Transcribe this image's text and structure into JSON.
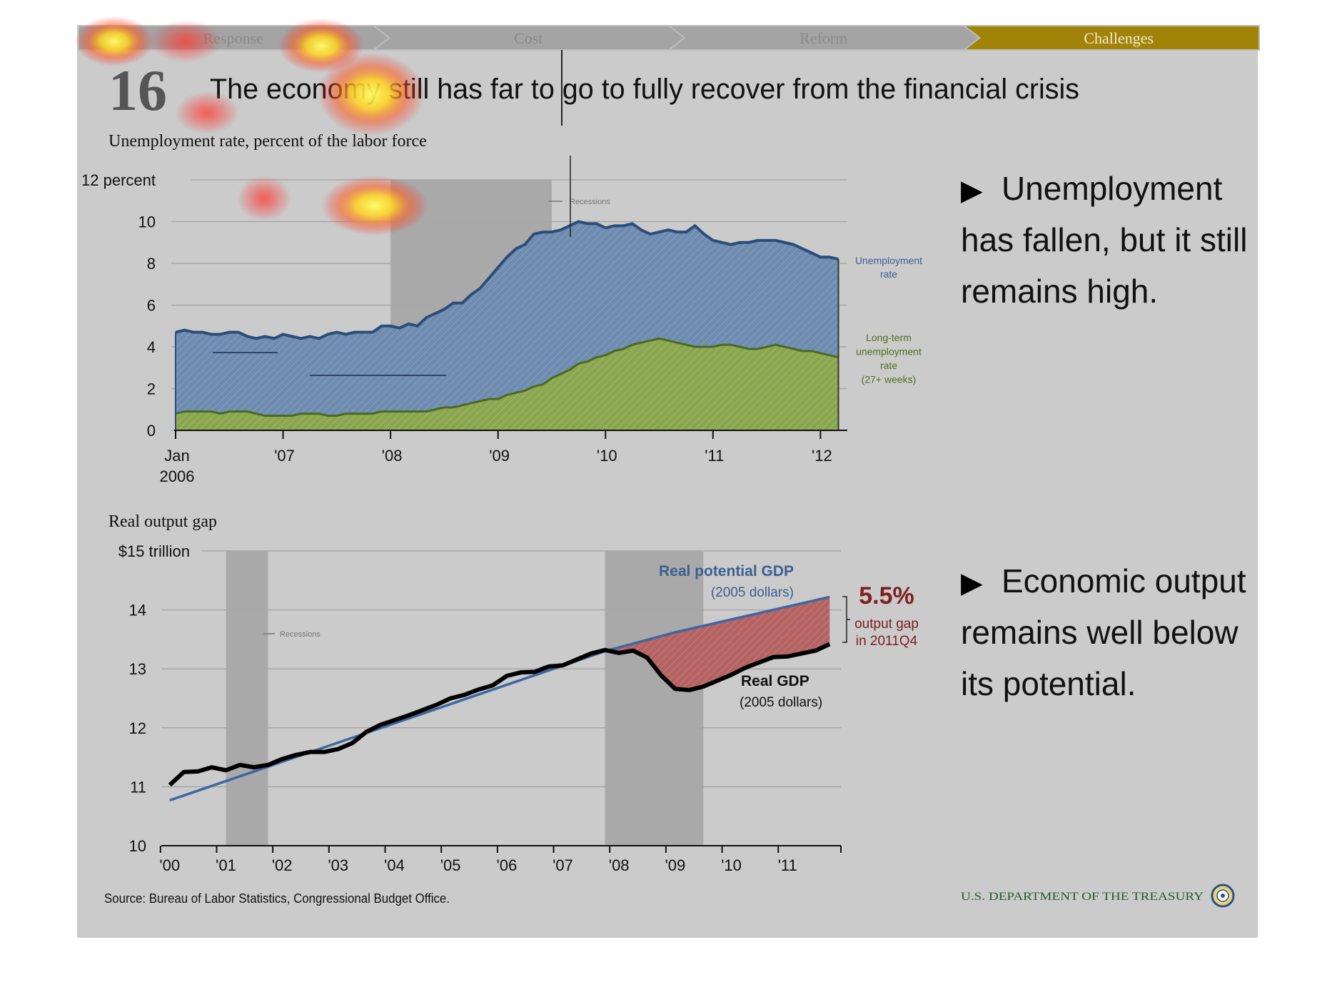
{
  "nav": {
    "tabs": [
      {
        "label": "Response",
        "active": false
      },
      {
        "label": "Cost",
        "active": false
      },
      {
        "label": "Reform",
        "active": false
      },
      {
        "label": "Challenges",
        "active": true
      }
    ],
    "inactive_color": "#a4a4a4",
    "active_color": "#a18407"
  },
  "slide": {
    "number": "16",
    "title": "The economy still has far to go to fully recover from the financial crisis"
  },
  "bullets": [
    {
      "marker": "▶",
      "text_lines": [
        "Unemployment",
        "has fallen, but it still",
        "remains high."
      ]
    },
    {
      "marker": "▶",
      "text_lines": [
        "Economic output",
        "remains well below",
        "its potential."
      ]
    }
  ],
  "footer": {
    "source": "Source: Bureau of Labor Statistics, Congressional Budget Office.",
    "agency": "U.S. DEPARTMENT OF THE TREASURY",
    "seal": "treasury-seal-icon"
  },
  "colors": {
    "background": "#cbcbcb",
    "recession_band": "#a9a9a9",
    "unemployment_fill": "#6e8bb0",
    "unemployment_line": "#2b4d78",
    "longterm_fill": "#8aa64f",
    "longterm_line": "#4b6a1f",
    "potential_line": "#3c67a0",
    "gdp_line": "#000000",
    "gap_fill": "#b56262",
    "gap_label": "#7d2020"
  },
  "chart_data": [
    {
      "type": "area",
      "title": "Unemployment rate, percent of the labor force",
      "yunit_label": "12 percent",
      "ylim": [
        0,
        12
      ],
      "yticks": [
        0,
        2,
        4,
        6,
        8,
        10,
        12
      ],
      "ytick_labels": [
        "0",
        "2",
        "4",
        "6",
        "8",
        "10",
        "12 percent"
      ],
      "x_range": [
        2006.0,
        2012.25
      ],
      "xticks": [
        2006,
        2007,
        2008,
        2009,
        2010,
        2011,
        2012
      ],
      "xtick_labels": [
        "Jan",
        "'07",
        "'08",
        "'09",
        "'10",
        "'11",
        "'12"
      ],
      "xtick_sublabel": "2006",
      "grid": true,
      "recessions": [
        {
          "start": 2008.0,
          "end": 2009.5,
          "label": "Recessions"
        }
      ],
      "series": [
        {
          "name": "Unemployment rate",
          "label_lines": [
            "Unemployment",
            "rate"
          ],
          "x": [
            2006.0,
            2006.083,
            2006.167,
            2006.25,
            2006.333,
            2006.417,
            2006.5,
            2006.583,
            2006.667,
            2006.75,
            2006.833,
            2006.917,
            2007.0,
            2007.083,
            2007.167,
            2007.25,
            2007.333,
            2007.417,
            2007.5,
            2007.583,
            2007.667,
            2007.75,
            2007.833,
            2007.917,
            2008.0,
            2008.083,
            2008.167,
            2008.25,
            2008.333,
            2008.417,
            2008.5,
            2008.583,
            2008.667,
            2008.75,
            2008.833,
            2008.917,
            2009.0,
            2009.083,
            2009.167,
            2009.25,
            2009.333,
            2009.417,
            2009.5,
            2009.583,
            2009.667,
            2009.75,
            2009.833,
            2009.917,
            2010.0,
            2010.083,
            2010.167,
            2010.25,
            2010.333,
            2010.417,
            2010.5,
            2010.583,
            2010.667,
            2010.75,
            2010.833,
            2010.917,
            2011.0,
            2011.083,
            2011.167,
            2011.25,
            2011.333,
            2011.417,
            2011.5,
            2011.583,
            2011.667,
            2011.75,
            2011.833,
            2011.917,
            2012.0,
            2012.083,
            2012.167
          ],
          "values": [
            4.7,
            4.8,
            4.7,
            4.7,
            4.6,
            4.6,
            4.7,
            4.7,
            4.5,
            4.4,
            4.5,
            4.4,
            4.6,
            4.5,
            4.4,
            4.5,
            4.4,
            4.6,
            4.7,
            4.6,
            4.7,
            4.7,
            4.7,
            5.0,
            5.0,
            4.9,
            5.1,
            5.0,
            5.4,
            5.6,
            5.8,
            6.1,
            6.1,
            6.5,
            6.8,
            7.3,
            7.8,
            8.3,
            8.7,
            8.9,
            9.4,
            9.5,
            9.5,
            9.6,
            9.8,
            10.0,
            9.9,
            9.9,
            9.7,
            9.8,
            9.8,
            9.9,
            9.6,
            9.4,
            9.5,
            9.6,
            9.5,
            9.5,
            9.8,
            9.4,
            9.1,
            9.0,
            8.9,
            9.0,
            9.0,
            9.1,
            9.1,
            9.1,
            9.0,
            8.9,
            8.7,
            8.5,
            8.3,
            8.3,
            8.2
          ]
        },
        {
          "name": "Long-term unemployment rate (27+ weeks)",
          "label_lines": [
            "Long-term",
            "unemployment",
            "rate",
            "(27+ weeks)"
          ],
          "x": [
            2006.0,
            2006.083,
            2006.167,
            2006.25,
            2006.333,
            2006.417,
            2006.5,
            2006.583,
            2006.667,
            2006.75,
            2006.833,
            2006.917,
            2007.0,
            2007.083,
            2007.167,
            2007.25,
            2007.333,
            2007.417,
            2007.5,
            2007.583,
            2007.667,
            2007.75,
            2007.833,
            2007.917,
            2008.0,
            2008.083,
            2008.167,
            2008.25,
            2008.333,
            2008.417,
            2008.5,
            2008.583,
            2008.667,
            2008.75,
            2008.833,
            2008.917,
            2009.0,
            2009.083,
            2009.167,
            2009.25,
            2009.333,
            2009.417,
            2009.5,
            2009.583,
            2009.667,
            2009.75,
            2009.833,
            2009.917,
            2010.0,
            2010.083,
            2010.167,
            2010.25,
            2010.333,
            2010.417,
            2010.5,
            2010.583,
            2010.667,
            2010.75,
            2010.833,
            2010.917,
            2011.0,
            2011.083,
            2011.167,
            2011.25,
            2011.333,
            2011.417,
            2011.5,
            2011.583,
            2011.667,
            2011.75,
            2011.833,
            2011.917,
            2012.0,
            2012.083,
            2012.167
          ],
          "values": [
            0.8,
            0.9,
            0.9,
            0.9,
            0.9,
            0.8,
            0.9,
            0.9,
            0.9,
            0.8,
            0.7,
            0.7,
            0.7,
            0.7,
            0.8,
            0.8,
            0.8,
            0.7,
            0.7,
            0.8,
            0.8,
            0.8,
            0.8,
            0.9,
            0.9,
            0.9,
            0.9,
            0.9,
            0.9,
            1.0,
            1.1,
            1.1,
            1.2,
            1.3,
            1.4,
            1.5,
            1.5,
            1.7,
            1.8,
            1.9,
            2.1,
            2.2,
            2.5,
            2.7,
            2.9,
            3.2,
            3.3,
            3.5,
            3.6,
            3.8,
            3.9,
            4.1,
            4.2,
            4.3,
            4.4,
            4.3,
            4.2,
            4.1,
            4.0,
            4.0,
            4.0,
            4.1,
            4.1,
            4.0,
            3.9,
            3.9,
            4.0,
            4.1,
            4.0,
            3.9,
            3.8,
            3.8,
            3.7,
            3.6,
            3.5
          ]
        }
      ]
    },
    {
      "type": "line",
      "title": "Real output gap",
      "yunit_label": "$15 trillion",
      "ylim": [
        10,
        15
      ],
      "yticks": [
        10,
        11,
        12,
        13,
        14,
        15
      ],
      "ytick_labels": [
        "10",
        "11",
        "12",
        "13",
        "14",
        "$15 trillion"
      ],
      "x_range": [
        1999.85,
        2011.95
      ],
      "xticks": [
        2000,
        2001,
        2002,
        2003,
        2004,
        2005,
        2006,
        2007,
        2008,
        2009,
        2010,
        2011
      ],
      "xtick_labels": [
        "'00",
        "'01",
        "'02",
        "'03",
        "'04",
        "'05",
        "'06",
        "'07",
        "'08",
        "'09",
        "'10",
        "'11"
      ],
      "grid": true,
      "recessions": [
        {
          "start": 2001.0,
          "end": 2001.75,
          "label": "Recessions"
        },
        {
          "start": 2007.75,
          "end": 2009.5,
          "label": ""
        }
      ],
      "series": [
        {
          "name": "Real potential GDP",
          "label_lines": [
            "Real potential GDP",
            "(2005 dollars)"
          ],
          "x": [
            2000.0,
            2007.75,
            2009.0,
            2011.75
          ],
          "values": [
            10.77,
            13.3,
            13.62,
            14.22
          ]
        },
        {
          "name": "Real GDP",
          "label_lines": [
            "Real GDP",
            "(2005 dollars)"
          ],
          "x": [
            2000.0,
            2000.25,
            2000.5,
            2000.75,
            2001.0,
            2001.25,
            2001.5,
            2001.75,
            2002.0,
            2002.25,
            2002.5,
            2002.75,
            2003.0,
            2003.25,
            2003.5,
            2003.75,
            2004.0,
            2004.25,
            2004.5,
            2004.75,
            2005.0,
            2005.25,
            2005.5,
            2005.75,
            2006.0,
            2006.25,
            2006.5,
            2006.75,
            2007.0,
            2007.25,
            2007.5,
            2007.75,
            2008.0,
            2008.25,
            2008.5,
            2008.75,
            2009.0,
            2009.25,
            2009.5,
            2009.75,
            2010.0,
            2010.25,
            2010.5,
            2010.75,
            2011.0,
            2011.25,
            2011.5,
            2011.75
          ],
          "values": [
            11.03,
            11.25,
            11.26,
            11.33,
            11.28,
            11.37,
            11.33,
            11.37,
            11.47,
            11.54,
            11.59,
            11.59,
            11.64,
            11.74,
            11.93,
            12.05,
            12.13,
            12.21,
            12.3,
            12.39,
            12.5,
            12.56,
            12.65,
            12.72,
            12.88,
            12.94,
            12.95,
            13.04,
            13.06,
            13.16,
            13.26,
            13.32,
            13.27,
            13.31,
            13.19,
            12.89,
            12.66,
            12.64,
            12.7,
            12.8,
            12.9,
            13.02,
            13.11,
            13.2,
            13.21,
            13.26,
            13.31,
            13.42
          ]
        }
      ],
      "annotation": {
        "value": "5.5%",
        "lines": [
          "output gap",
          "in 2011Q4"
        ]
      }
    }
  ]
}
